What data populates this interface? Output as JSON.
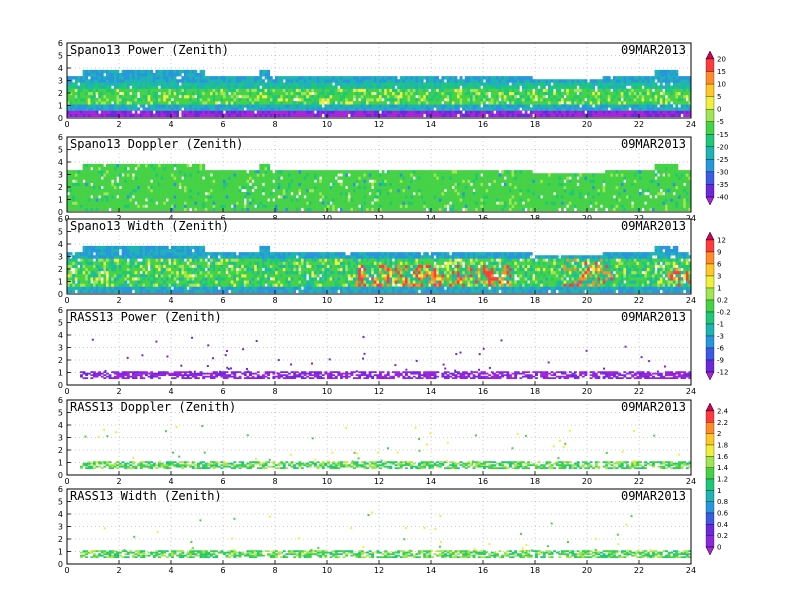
{
  "chart_data": [
    {
      "type": "heatmap",
      "title": "Spano13 Power (Zenith)",
      "date": "09MAR2013",
      "xlabel": "",
      "ylabel": "",
      "xlim": [
        0,
        24
      ],
      "ylim": [
        0,
        6
      ],
      "xticks": [
        0,
        2,
        4,
        6,
        8,
        10,
        12,
        14,
        16,
        18,
        20,
        22,
        24
      ],
      "yticks": [
        0,
        1,
        2,
        3,
        4,
        5,
        6
      ],
      "grid": true,
      "data_extent": {
        "x": [
          0,
          24
        ],
        "y": [
          0.1,
          3.3
        ],
        "level_near_top": "blue",
        "level_mid": "green",
        "level_bottom": "purple"
      }
    },
    {
      "type": "heatmap",
      "title": "Spano13 Doppler (Zenith)",
      "date": "09MAR2013",
      "xlabel": "",
      "ylabel": "",
      "xlim": [
        0,
        24
      ],
      "ylim": [
        0,
        6
      ],
      "xticks": [
        0,
        2,
        4,
        6,
        8,
        10,
        12,
        14,
        16,
        18,
        20,
        22,
        24
      ],
      "yticks": [
        0,
        1,
        2,
        3,
        4,
        5,
        6
      ],
      "grid": true,
      "data_extent": {
        "x": [
          0,
          24
        ],
        "y": [
          0.1,
          3.3
        ],
        "dominant_level": "green"
      }
    },
    {
      "type": "heatmap",
      "title": "Spano13 Width (Zenith)",
      "date": "09MAR2013",
      "xlabel": "",
      "ylabel": "",
      "xlim": [
        0,
        24
      ],
      "ylim": [
        0,
        6
      ],
      "xticks": [
        0,
        2,
        4,
        6,
        8,
        10,
        12,
        14,
        16,
        18,
        20,
        22,
        24
      ],
      "yticks": [
        0,
        1,
        2,
        3,
        4,
        5,
        6
      ],
      "grid": true,
      "data_extent": {
        "x": [
          0,
          24
        ],
        "y": [
          0.1,
          3.3
        ],
        "dominant_level": "green",
        "hot_spots": "yellow/red between 11 and 24 h below 3 km"
      }
    },
    {
      "type": "heatmap",
      "title": "RASS13 Power (Zenith)",
      "date": "09MAR2013",
      "xlabel": "",
      "ylabel": "",
      "xlim": [
        0,
        24
      ],
      "ylim": [
        0,
        6
      ],
      "xticks": [
        0,
        2,
        4,
        6,
        8,
        10,
        12,
        14,
        16,
        18,
        20,
        22,
        24
      ],
      "yticks": [
        0,
        1,
        2,
        3,
        4,
        5,
        6
      ],
      "grid": true,
      "data_extent": {
        "x": [
          0,
          24
        ],
        "y": [
          0.5,
          1.0
        ],
        "dominant_level": "purple"
      }
    },
    {
      "type": "heatmap",
      "title": "RASS13 Doppler (Zenith)",
      "date": "09MAR2013",
      "xlabel": "",
      "ylabel": "",
      "xlim": [
        0,
        24
      ],
      "ylim": [
        0,
        6
      ],
      "xticks": [
        0,
        2,
        4,
        6,
        8,
        10,
        12,
        14,
        16,
        18,
        20,
        22,
        24
      ],
      "yticks": [
        0,
        1,
        2,
        3,
        4,
        5,
        6
      ],
      "grid": true,
      "data_extent": {
        "x": [
          0,
          24
        ],
        "y": [
          0.5,
          1.0
        ],
        "dominant_level": "green"
      }
    },
    {
      "type": "heatmap",
      "title": "RASS13 Width (Zenith)",
      "date": "09MAR2013",
      "xlabel": "",
      "ylabel": "",
      "xlim": [
        0,
        24
      ],
      "ylim": [
        0,
        6
      ],
      "xticks": [
        0,
        2,
        4,
        6,
        8,
        10,
        12,
        14,
        16,
        18,
        20,
        22,
        24
      ],
      "yticks": [
        0,
        1,
        2,
        3,
        4,
        5,
        6
      ],
      "grid": true,
      "data_extent": {
        "x": [
          0,
          24
        ],
        "y": [
          0.5,
          1.0
        ],
        "dominant_level": "green"
      }
    }
  ],
  "colorbars": [
    {
      "panels": [
        0,
        1
      ],
      "labels": [
        "20",
        "15",
        "10",
        "5",
        "0",
        "-5",
        "-15",
        "-20",
        "-25",
        "-30",
        "-35",
        "-40"
      ],
      "colors": [
        "#d2005a",
        "#ff3c3c",
        "#ff8c28",
        "#ffc828",
        "#f0f03c",
        "#a0e650",
        "#46d246",
        "#1ec878",
        "#1eb4b4",
        "#2896dc",
        "#3c5ae6",
        "#6e28dc",
        "#aa22dc"
      ]
    },
    {
      "panels": [
        2,
        3
      ],
      "labels": [
        "12",
        "9",
        "6",
        "3",
        "1",
        "0.2",
        "-0.2",
        "-1",
        "-3",
        "-6",
        "-9",
        "-12"
      ],
      "colors": [
        "#d2005a",
        "#ff3c3c",
        "#ff8c28",
        "#ffc828",
        "#f0f03c",
        "#a0e650",
        "#46d246",
        "#1ec878",
        "#1eb4b4",
        "#2896dc",
        "#3c5ae6",
        "#6e28dc",
        "#aa22dc"
      ]
    },
    {
      "panels": [
        4,
        5
      ],
      "labels": [
        "2.4",
        "2.2",
        "2",
        "1.8",
        "1.6",
        "1.4",
        "1.2",
        "1",
        "0.8",
        "0.6",
        "0.4",
        "0.2",
        "0"
      ],
      "colors": [
        "#d2005a",
        "#ff3c3c",
        "#ff8c28",
        "#ffc828",
        "#f0f03c",
        "#a0e650",
        "#46d246",
        "#1ec878",
        "#1eb4b4",
        "#2896dc",
        "#3c5ae6",
        "#6e28dc",
        "#8a28dc",
        "#aa22dc"
      ]
    }
  ]
}
